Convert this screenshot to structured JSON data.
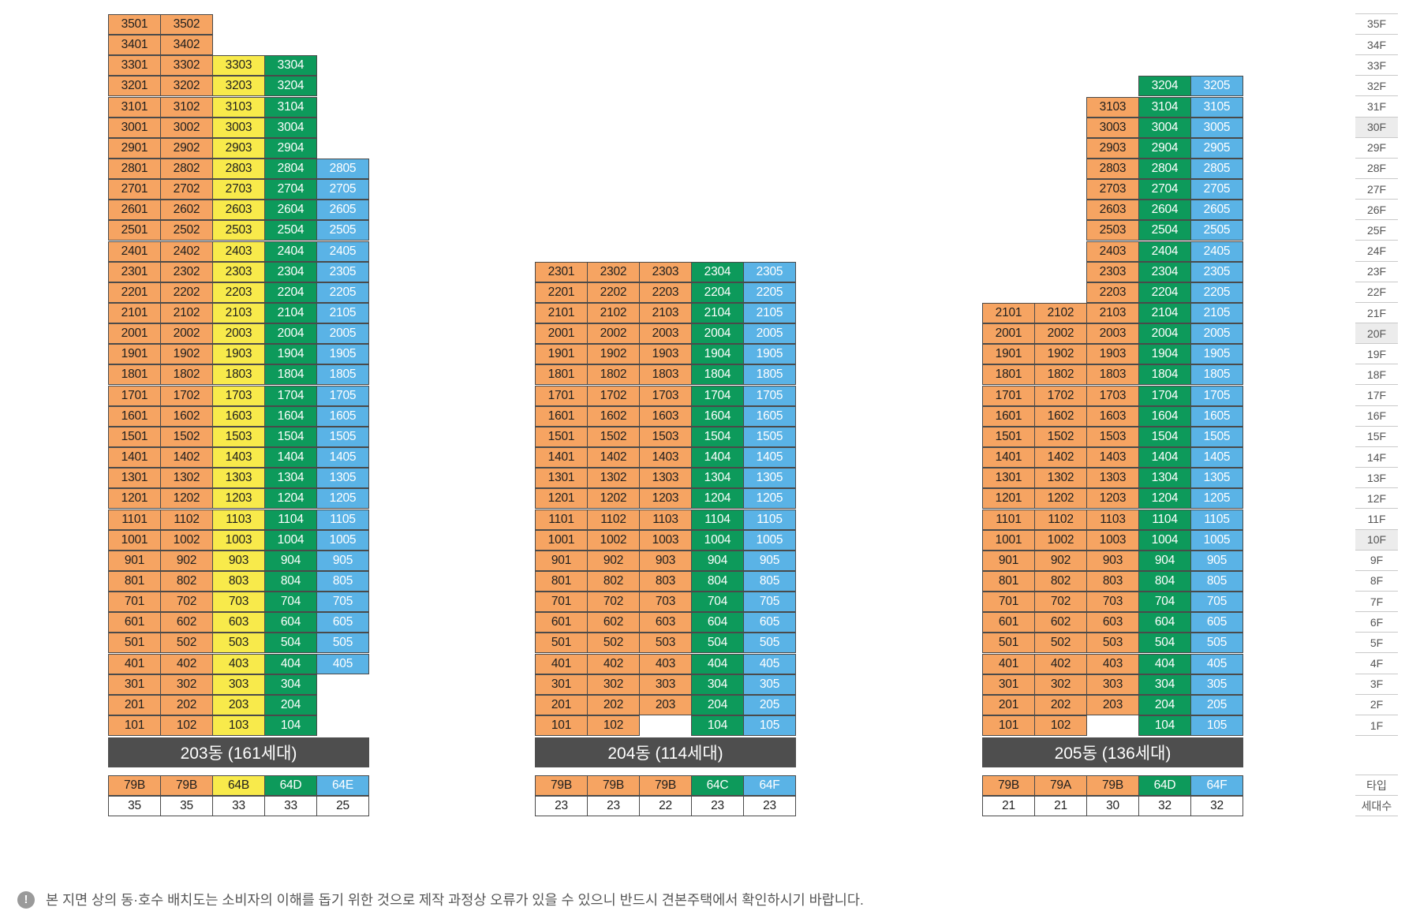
{
  "colors": {
    "orange": "#f6a462",
    "yellow": "#f8ea4b",
    "green": "#0d9a5b",
    "blue": "#5ab3e6",
    "bar": "#4e4e4e",
    "highlight": "#ececec"
  },
  "floors": [
    "35F",
    "34F",
    "33F",
    "32F",
    "31F",
    "30F",
    "29F",
    "28F",
    "27F",
    "26F",
    "25F",
    "24F",
    "23F",
    "22F",
    "21F",
    "20F",
    "19F",
    "18F",
    "17F",
    "16F",
    "15F",
    "14F",
    "13F",
    "12F",
    "11F",
    "10F",
    "9F",
    "8F",
    "7F",
    "6F",
    "5F",
    "4F",
    "3F",
    "2F",
    "1F"
  ],
  "highlighted_floors": [
    "30F",
    "20F",
    "10F"
  ],
  "legend_labels": {
    "type": "타입",
    "households": "세대수"
  },
  "buildings": [
    {
      "name": "203동 (161세대)",
      "lines": [
        {
          "color": "orange",
          "type": "79B",
          "households": "35",
          "from": 1,
          "to": 35
        },
        {
          "color": "orange",
          "type": "79B",
          "households": "35",
          "from": 1,
          "to": 35
        },
        {
          "color": "yellow",
          "type": "64B",
          "households": "33",
          "from": 1,
          "to": 33
        },
        {
          "color": "green",
          "type": "64D",
          "households": "33",
          "from": 1,
          "to": 33
        },
        {
          "color": "blue",
          "type": "64E",
          "households": "25",
          "from": 4,
          "to": 28
        }
      ],
      "empty": [
        [
          4,
          1
        ],
        [
          4,
          2
        ],
        [
          4,
          3
        ]
      ]
    },
    {
      "name": "204동 (114세대)",
      "lines": [
        {
          "color": "orange",
          "type": "79B",
          "households": "23",
          "from": 1,
          "to": 23
        },
        {
          "color": "orange",
          "type": "79B",
          "households": "23",
          "from": 1,
          "to": 23
        },
        {
          "color": "orange",
          "type": "79B",
          "households": "22",
          "from": 2,
          "to": 23
        },
        {
          "color": "green",
          "type": "64C",
          "households": "23",
          "from": 1,
          "to": 23
        },
        {
          "color": "blue",
          "type": "64F",
          "households": "23",
          "from": 1,
          "to": 23
        }
      ],
      "empty": [
        [
          2,
          1
        ]
      ]
    },
    {
      "name": "205동 (136세대)",
      "lines": [
        {
          "color": "orange",
          "type": "79B",
          "households": "21",
          "from": 1,
          "to": 21
        },
        {
          "color": "orange",
          "type": "79A",
          "households": "21",
          "from": 1,
          "to": 21
        },
        {
          "color": "orange",
          "type": "79B",
          "households": "30",
          "from": 2,
          "to": 31
        },
        {
          "color": "green",
          "type": "64D",
          "households": "32",
          "from": 1,
          "to": 32
        },
        {
          "color": "blue",
          "type": "64F",
          "households": "32",
          "from": 1,
          "to": 32
        }
      ],
      "empty": [
        [
          2,
          1
        ]
      ],
      "label_overrides": {
        "32": {
          "3": "3204",
          "4": "3205"
        }
      }
    }
  ],
  "notice": "본 지면 상의 동·호수 배치도는 소비자의 이해를 돕기 위한 것으로 제작 과정상 오류가 있을 수 있으니 반드시 견본주택에서 확인하시기 바랍니다.",
  "notice_icon": "exclamation-icon"
}
